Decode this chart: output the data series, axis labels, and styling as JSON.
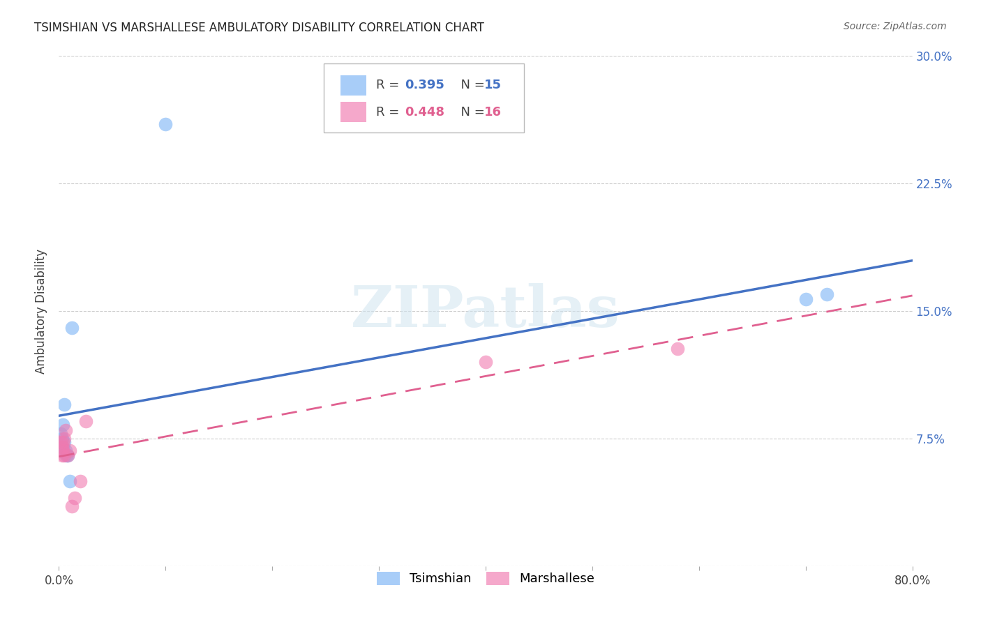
{
  "title": "TSIMSHIAN VS MARSHALLESE AMBULATORY DISABILITY CORRELATION CHART",
  "source": "Source: ZipAtlas.com",
  "ylabel": "Ambulatory Disability",
  "xlim": [
    0.0,
    0.8
  ],
  "ylim": [
    0.0,
    0.3
  ],
  "xticks": [
    0.0,
    0.1,
    0.2,
    0.3,
    0.4,
    0.5,
    0.6,
    0.7,
    0.8
  ],
  "xticklabels": [
    "0.0%",
    "",
    "",
    "",
    "",
    "",
    "",
    "",
    "80.0%"
  ],
  "yticks": [
    0.0,
    0.075,
    0.15,
    0.225,
    0.3
  ],
  "yticklabels": [
    "",
    "7.5%",
    "15.0%",
    "22.5%",
    "30.0%"
  ],
  "grid_color": "#cccccc",
  "background_color": "#ffffff",
  "watermark_text": "ZIPatlas",
  "tsimshian_color": "#7ab3f5",
  "marshallese_color": "#f07ab0",
  "tsimshian_line_color": "#4472c4",
  "marshallese_line_color": "#e06090",
  "tsimshian_x": [
    0.002,
    0.003,
    0.003,
    0.004,
    0.004,
    0.005,
    0.005,
    0.006,
    0.007,
    0.008,
    0.01,
    0.012,
    0.1,
    0.7,
    0.72
  ],
  "tsimshian_y": [
    0.078,
    0.068,
    0.075,
    0.083,
    0.07,
    0.095,
    0.073,
    0.068,
    0.065,
    0.065,
    0.05,
    0.14,
    0.26,
    0.157,
    0.16
  ],
  "marshallese_x": [
    0.002,
    0.003,
    0.003,
    0.004,
    0.004,
    0.005,
    0.005,
    0.006,
    0.008,
    0.01,
    0.012,
    0.015,
    0.02,
    0.025,
    0.4,
    0.58
  ],
  "marshallese_y": [
    0.073,
    0.065,
    0.07,
    0.068,
    0.073,
    0.065,
    0.075,
    0.08,
    0.065,
    0.068,
    0.035,
    0.04,
    0.05,
    0.085,
    0.12,
    0.128
  ],
  "legend_r1": "R = 0.395",
  "legend_n1": "N = 15",
  "legend_r2": "R = 0.448",
  "legend_n2": "N = 16",
  "label_tsimshian": "Tsimshian",
  "label_marshallese": "Marshallese"
}
